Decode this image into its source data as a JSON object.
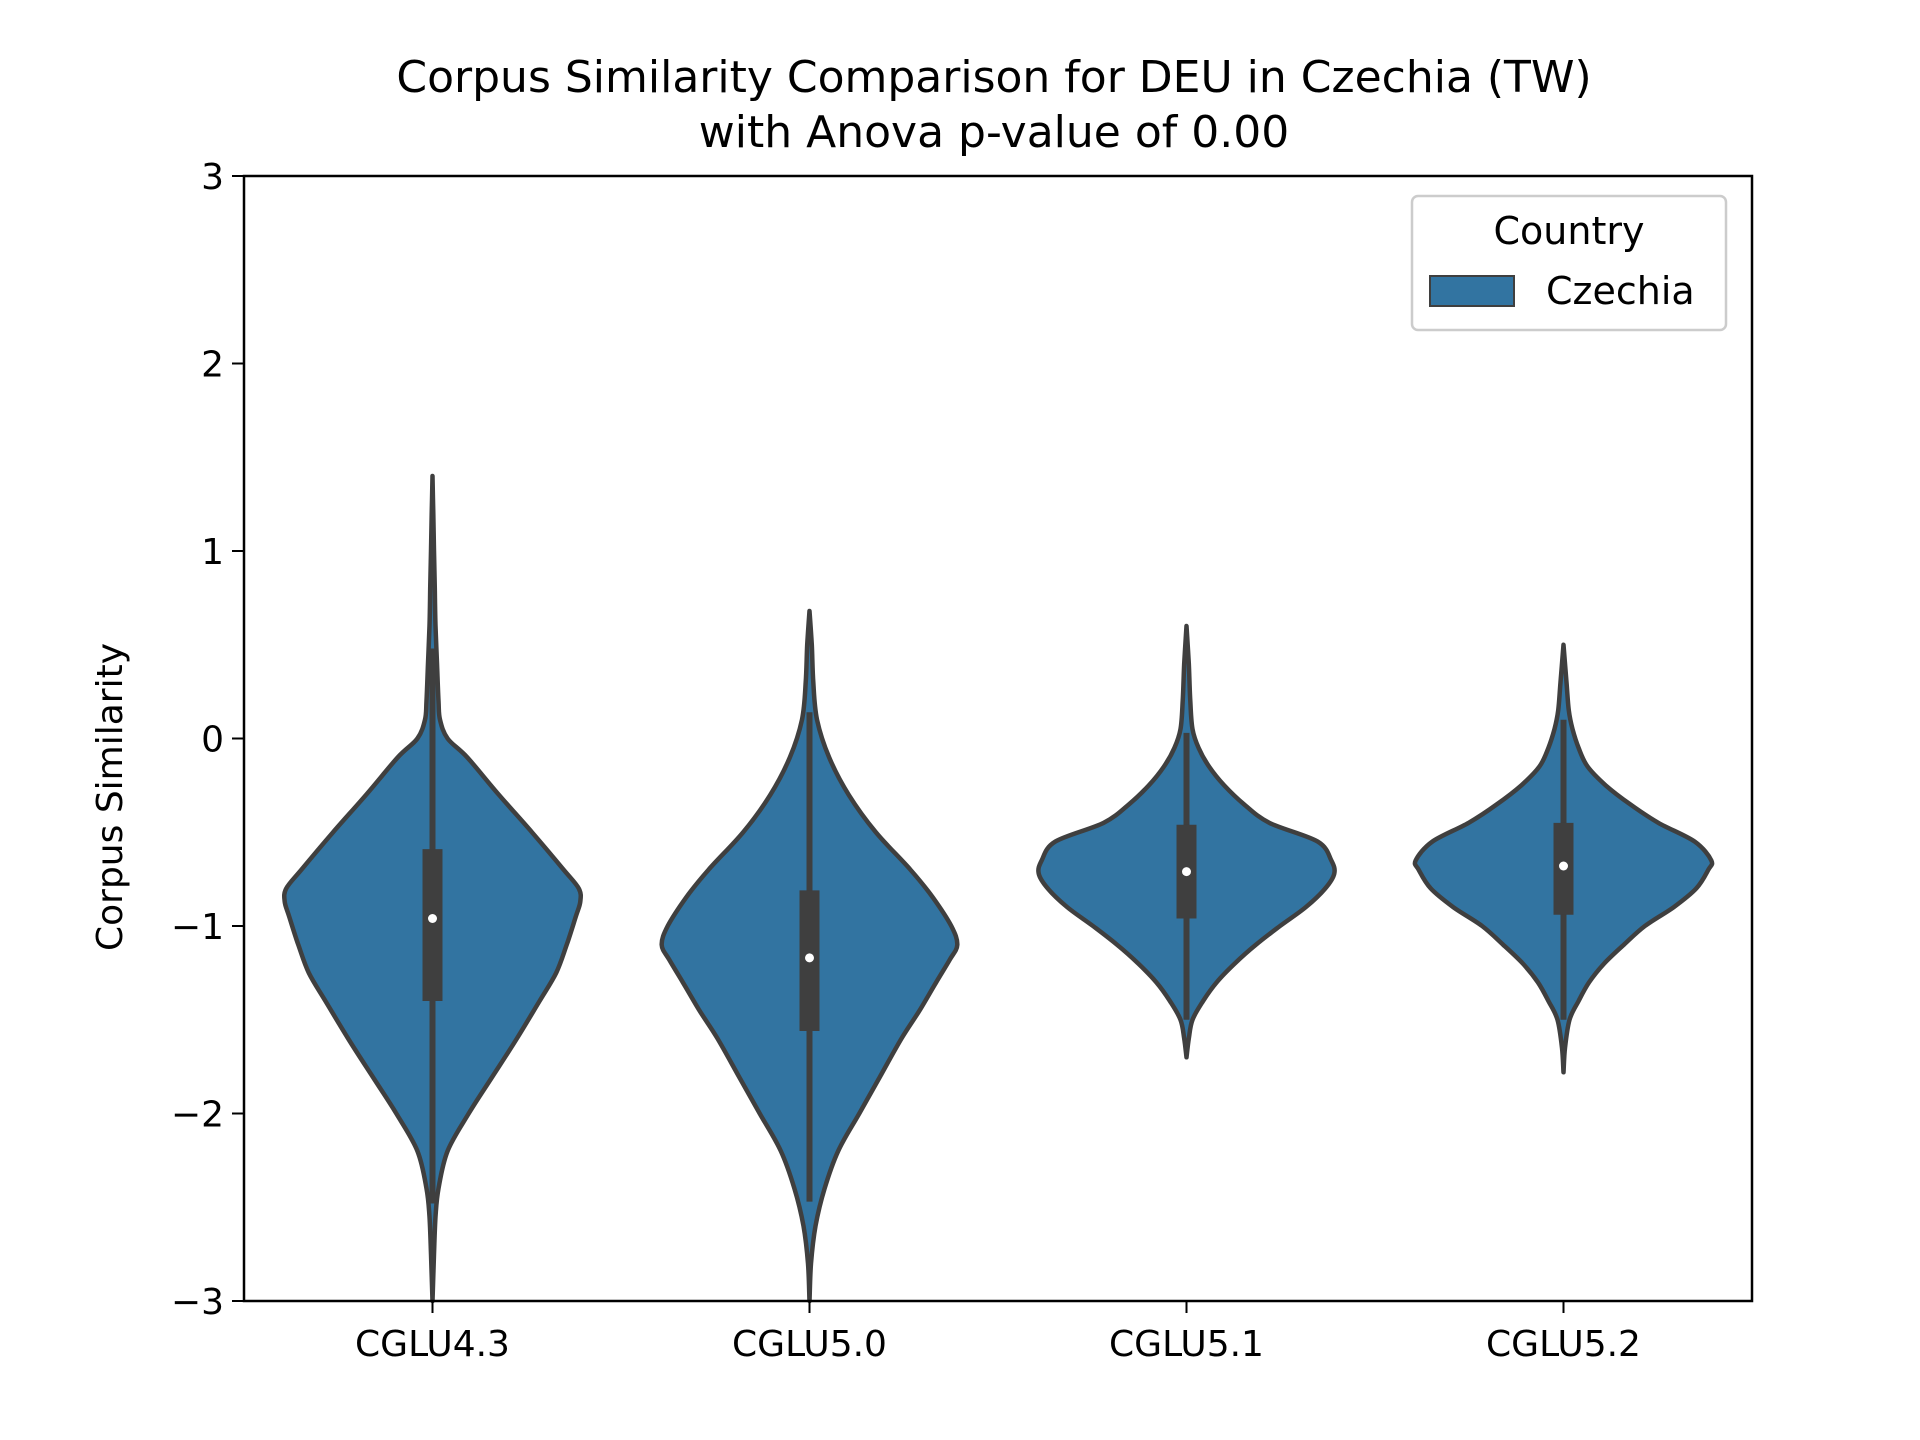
{
  "chart_data": {
    "type": "violin",
    "title": "Corpus Similarity Comparison for DEU in Czechia (TW)",
    "subtitle": "with Anova p-value of 0.00",
    "xlabel": "",
    "ylabel": "Corpus Similarity",
    "ylim": [
      -3,
      3
    ],
    "yticks": [
      -3,
      -2,
      -1,
      0,
      1,
      2,
      3
    ],
    "ytick_labels": [
      "−3",
      "−2",
      "−1",
      "0",
      "1",
      "2",
      "3"
    ],
    "categories": [
      "CGLU4.3",
      "CGLU5.0",
      "CGLU5.1",
      "CGLU5.2"
    ],
    "legend": {
      "title": "Country",
      "entries": [
        "Czechia"
      ],
      "placement": "top-right"
    },
    "grid": false,
    "colors": {
      "violin_fill": "#3274a1",
      "violin_edge": "#3f3f3f",
      "box": "#3f3f3f",
      "median": "#ffffff"
    },
    "series": [
      {
        "name": "Czechia",
        "violins": [
          {
            "category": "CGLU4.3",
            "min": -3.0,
            "max": 1.4,
            "q1": -1.4,
            "median": -0.96,
            "q3": -0.59,
            "whisker_low": -2.48,
            "whisker_high": 0.48,
            "profile": [
              [
                -3.0,
                0.0
              ],
              [
                -2.75,
                0.01
              ],
              [
                -2.55,
                0.02
              ],
              [
                -2.4,
                0.04
              ],
              [
                -2.2,
                0.1
              ],
              [
                -2.0,
                0.24
              ],
              [
                -1.8,
                0.4
              ],
              [
                -1.6,
                0.56
              ],
              [
                -1.4,
                0.71
              ],
              [
                -1.25,
                0.82
              ],
              [
                -1.1,
                0.89
              ],
              [
                -0.95,
                0.95
              ],
              [
                -0.87,
                0.98
              ],
              [
                -0.8,
                0.97
              ],
              [
                -0.7,
                0.87
              ],
              [
                -0.5,
                0.66
              ],
              [
                -0.3,
                0.44
              ],
              [
                -0.1,
                0.23
              ],
              [
                0.0,
                0.1
              ],
              [
                0.1,
                0.05
              ],
              [
                0.2,
                0.04
              ],
              [
                0.4,
                0.03
              ],
              [
                0.6,
                0.02
              ],
              [
                0.8,
                0.015
              ],
              [
                1.0,
                0.01
              ],
              [
                1.2,
                0.005
              ],
              [
                1.4,
                0.0
              ]
            ]
          },
          {
            "category": "CGLU5.0",
            "min": -3.0,
            "max": 0.68,
            "q1": -1.56,
            "median": -1.17,
            "q3": -0.81,
            "whisker_low": -2.47,
            "whisker_high": 0.14,
            "profile": [
              [
                -3.0,
                0.0
              ],
              [
                -2.8,
                0.01
              ],
              [
                -2.6,
                0.04
              ],
              [
                -2.4,
                0.1
              ],
              [
                -2.2,
                0.19
              ],
              [
                -2.0,
                0.33
              ],
              [
                -1.8,
                0.47
              ],
              [
                -1.6,
                0.61
              ],
              [
                -1.45,
                0.73
              ],
              [
                -1.3,
                0.84
              ],
              [
                -1.18,
                0.93
              ],
              [
                -1.1,
                0.98
              ],
              [
                -1.0,
                0.94
              ],
              [
                -0.85,
                0.82
              ],
              [
                -0.7,
                0.67
              ],
              [
                -0.5,
                0.44
              ],
              [
                -0.3,
                0.26
              ],
              [
                -0.1,
                0.13
              ],
              [
                0.1,
                0.05
              ],
              [
                0.3,
                0.025
              ],
              [
                0.5,
                0.015
              ],
              [
                0.68,
                0.0
              ]
            ]
          },
          {
            "category": "CGLU5.1",
            "min": -1.7,
            "max": 0.6,
            "q1": -0.96,
            "median": -0.71,
            "q3": -0.46,
            "whisker_low": -1.5,
            "whisker_high": 0.03,
            "profile": [
              [
                -1.7,
                0.0
              ],
              [
                -1.6,
                0.015
              ],
              [
                -1.5,
                0.04
              ],
              [
                -1.4,
                0.11
              ],
              [
                -1.3,
                0.2
              ],
              [
                -1.2,
                0.32
              ],
              [
                -1.1,
                0.46
              ],
              [
                -1.0,
                0.62
              ],
              [
                -0.9,
                0.79
              ],
              [
                -0.8,
                0.92
              ],
              [
                -0.72,
                0.98
              ],
              [
                -0.65,
                0.96
              ],
              [
                -0.55,
                0.87
              ],
              [
                -0.45,
                0.55
              ],
              [
                -0.35,
                0.38
              ],
              [
                -0.25,
                0.25
              ],
              [
                -0.15,
                0.15
              ],
              [
                -0.05,
                0.08
              ],
              [
                0.05,
                0.04
              ],
              [
                0.2,
                0.025
              ],
              [
                0.4,
                0.015
              ],
              [
                0.6,
                0.0
              ]
            ]
          },
          {
            "category": "CGLU5.2",
            "min": -1.78,
            "max": 0.5,
            "q1": -0.94,
            "median": -0.68,
            "q3": -0.45,
            "whisker_low": -1.5,
            "whisker_high": 0.1,
            "profile": [
              [
                -1.78,
                0.0
              ],
              [
                -1.65,
                0.01
              ],
              [
                -1.5,
                0.04
              ],
              [
                -1.4,
                0.1
              ],
              [
                -1.3,
                0.17
              ],
              [
                -1.2,
                0.27
              ],
              [
                -1.1,
                0.4
              ],
              [
                -1.0,
                0.54
              ],
              [
                -0.9,
                0.73
              ],
              [
                -0.8,
                0.88
              ],
              [
                -0.7,
                0.96
              ],
              [
                -0.65,
                0.98
              ],
              [
                -0.55,
                0.87
              ],
              [
                -0.45,
                0.63
              ],
              [
                -0.35,
                0.44
              ],
              [
                -0.25,
                0.28
              ],
              [
                -0.15,
                0.16
              ],
              [
                -0.05,
                0.1
              ],
              [
                0.05,
                0.06
              ],
              [
                0.15,
                0.035
              ],
              [
                0.3,
                0.02
              ],
              [
                0.5,
                0.0
              ]
            ]
          }
        ]
      }
    ]
  }
}
